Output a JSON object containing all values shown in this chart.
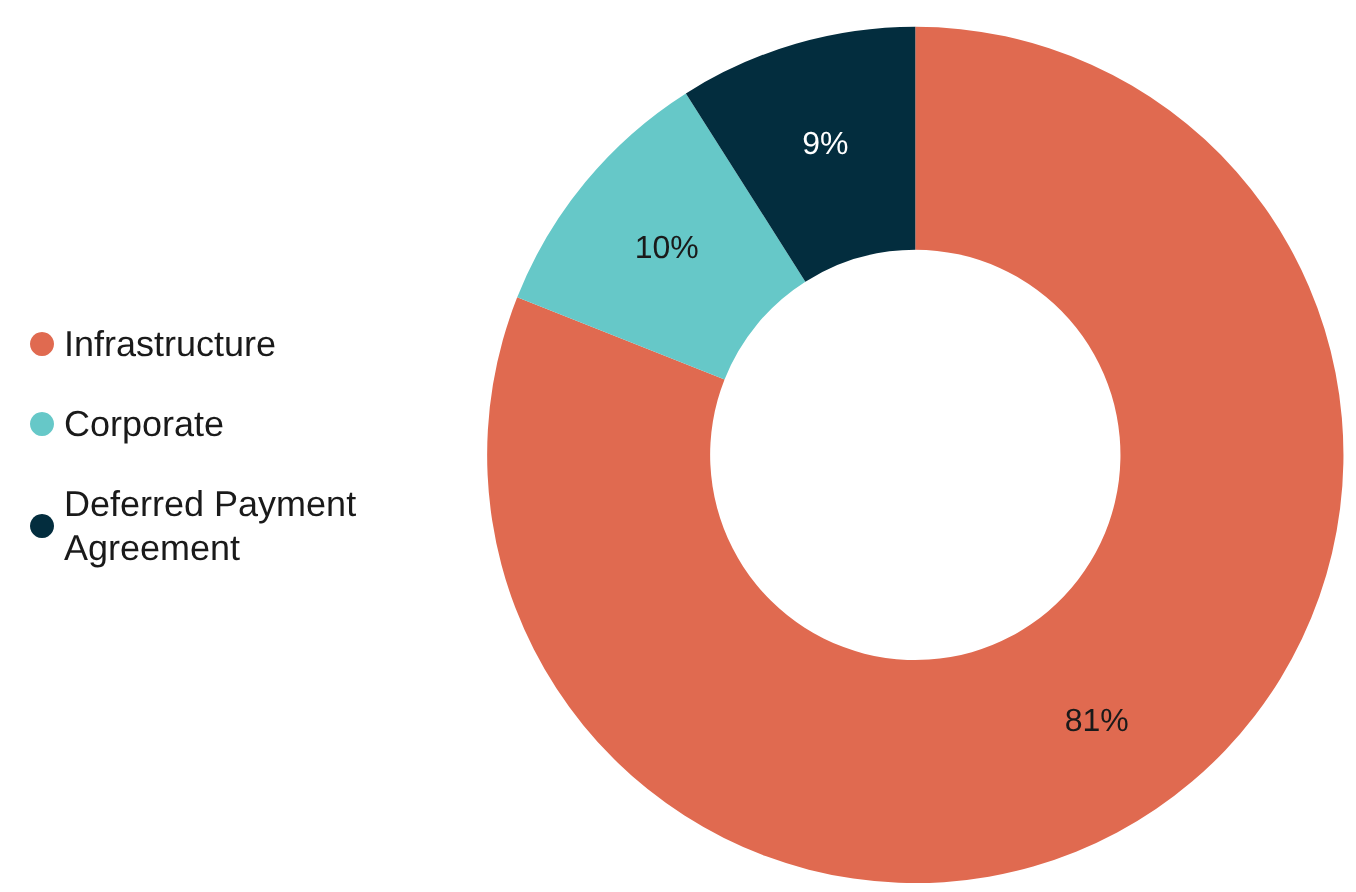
{
  "chart_data": {
    "type": "donut",
    "categories": [
      "Infrastructure",
      "Corporate",
      "Deferred Payment Agreement"
    ],
    "values": [
      81,
      10,
      9
    ],
    "colors": [
      "#e06a50",
      "#66c8c8",
      "#032d3e"
    ],
    "value_labels": [
      "81%",
      "10%",
      "9%"
    ],
    "legend": "left"
  }
}
